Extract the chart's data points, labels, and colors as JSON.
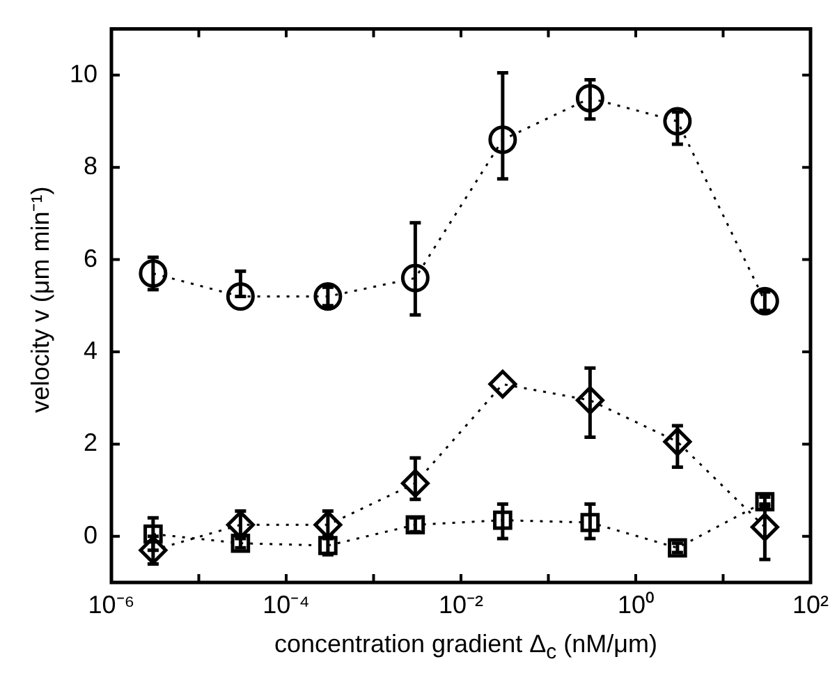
{
  "chart_data": {
    "type": "line",
    "xlabel": "concentration gradient Δ$_{c}$ (nM/μm)",
    "ylabel": "velocity v (μm min⁻¹)",
    "log": "x",
    "line_style": "dotted",
    "grid": false,
    "legend": false,
    "xlim": [
      1e-06,
      100
    ],
    "xticks": [
      {
        "value": 1e-06,
        "label": "10⁻⁶"
      },
      {
        "value": 1e-05,
        "label": null
      },
      {
        "value": 0.0001,
        "label": "10⁻⁴"
      },
      {
        "value": 0.001,
        "label": null
      },
      {
        "value": 0.01,
        "label": "10⁻²"
      },
      {
        "value": 0.1,
        "label": null
      },
      {
        "value": 1,
        "label": "10⁰"
      },
      {
        "value": 10,
        "label": null
      },
      {
        "value": 100,
        "label": "10²"
      }
    ],
    "ylim": [
      -1,
      11
    ],
    "yticks": [
      0,
      2,
      4,
      6,
      8,
      10
    ],
    "x": [
      3e-06,
      3e-05,
      0.0003,
      0.003,
      0.03,
      0.3,
      3,
      30
    ],
    "series": [
      {
        "color": "#000000",
        "marker": "circle",
        "values": [
          5.7,
          5.2,
          5.2,
          5.6,
          8.6,
          9.5,
          9.0,
          5.1
        ],
        "errors": [
          0.35,
          [
            5.2,
            5.75
          ],
          0.2,
          [
            4.8,
            6.8
          ],
          [
            7.75,
            10.05
          ],
          [
            9.05,
            9.9
          ],
          [
            8.5,
            9.2
          ],
          0.2
        ]
      },
      {
        "color": "#000000",
        "marker": "diamond",
        "values": [
          -0.3,
          0.25,
          0.25,
          1.15,
          3.3,
          2.95,
          2.05,
          0.2
        ],
        "errors": [
          0.3,
          [
            0.0,
            0.55
          ],
          0.3,
          [
            0.8,
            1.7
          ],
          null,
          [
            2.15,
            3.65
          ],
          [
            1.5,
            2.4
          ],
          [
            -0.5,
            0.7
          ]
        ]
      },
      {
        "color": "#000000",
        "marker": "square",
        "values": [
          0.05,
          -0.15,
          -0.2,
          0.25,
          0.35,
          0.3,
          -0.25,
          0.75
        ],
        "errors": [
          [
            -0.3,
            0.4
          ],
          0.1,
          0.2,
          0.15,
          [
            -0.05,
            0.7
          ],
          [
            -0.05,
            0.7
          ],
          0.1,
          0.1
        ]
      }
    ]
  }
}
